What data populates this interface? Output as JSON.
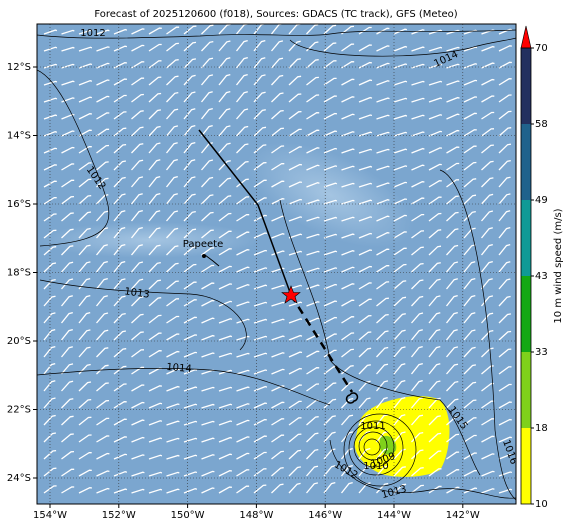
{
  "map": {
    "title": "Forecast of 2025120600 (f018), Sources: GDACS (TC track), GFS (Meteo)",
    "lon_ticks": [
      {
        "value": -154,
        "label": "154°W"
      },
      {
        "value": -152,
        "label": "152°W"
      },
      {
        "value": -150,
        "label": "150°W"
      },
      {
        "value": -148,
        "label": "148°W"
      },
      {
        "value": -146,
        "label": "146°W"
      },
      {
        "value": -144,
        "label": "144°W"
      },
      {
        "value": -142,
        "label": "142°W"
      }
    ],
    "lat_ticks": [
      {
        "value": -12,
        "label": "12°S"
      },
      {
        "value": -14,
        "label": "14°S"
      },
      {
        "value": -16,
        "label": "16°S"
      },
      {
        "value": -18,
        "label": "18°S"
      },
      {
        "value": -20,
        "label": "20°S"
      },
      {
        "value": -22,
        "label": "22°S"
      },
      {
        "value": -24,
        "label": "24°S"
      }
    ],
    "place": "Papeete",
    "isobar_labels": [
      1012,
      1014,
      1012,
      1013,
      1014,
      1015,
      1016,
      1011,
      1009,
      1010,
      1012,
      1013
    ],
    "colorbar": {
      "label": "10 m wind speed (m/s)",
      "ticks": [
        10,
        18,
        33,
        43,
        49,
        58,
        70
      ],
      "colors": [
        "#ffff00",
        "#7fd11b",
        "#14a814",
        "#0f9a96",
        "#20628c",
        "#23305f"
      ],
      "over_color": "#ff0000"
    }
  }
}
